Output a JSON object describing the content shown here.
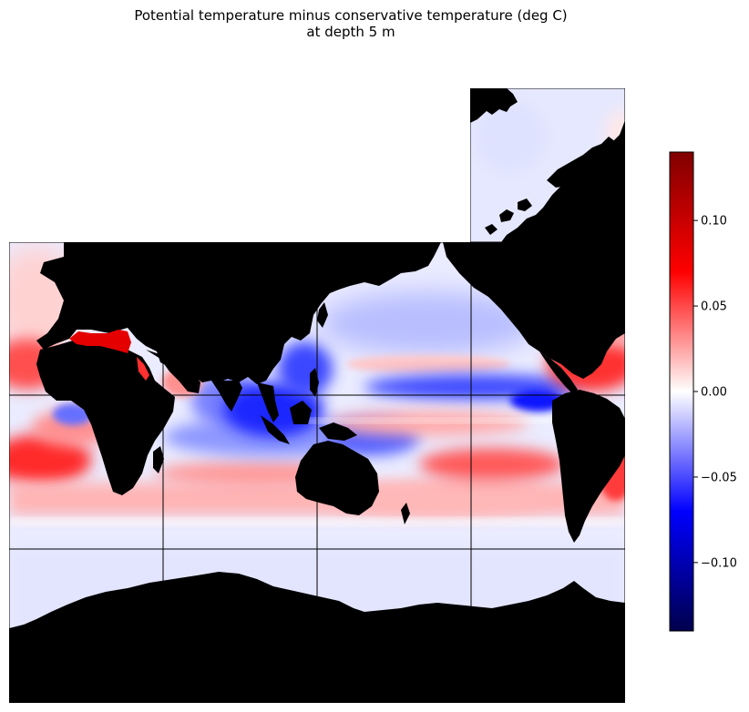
{
  "title": {
    "line1": "Potential temperature minus conservative temperature (deg C)",
    "line2": "at depth 5 m"
  },
  "colorbar": {
    "colormap": "seismic",
    "min": -0.14,
    "max": 0.14,
    "ticks": [
      {
        "value": 0.1,
        "label": "0.10"
      },
      {
        "value": 0.05,
        "label": "0.05"
      },
      {
        "value": 0.0,
        "label": "0.00"
      },
      {
        "value": -0.05,
        "label": "−0.05"
      },
      {
        "value": -0.1,
        "label": "−0.10"
      }
    ]
  },
  "colors": {
    "land": "#000000",
    "grid_lines": "#000000",
    "strong_positive": "#e00000",
    "strong_negative": "#0000e0",
    "neutral": "#ffffff"
  }
}
